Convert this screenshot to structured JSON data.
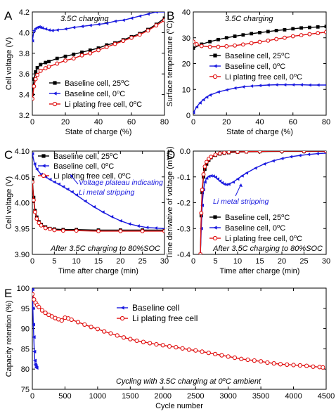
{
  "chart_data": [
    {
      "panel": "A",
      "type": "line",
      "xlabel": "State of charge (%)",
      "ylabel": "Cell voltage (V)",
      "xlim": [
        0,
        80
      ],
      "ylim": [
        3.2,
        4.2
      ],
      "xticks": [
        0,
        20,
        40,
        60,
        80
      ],
      "yticks": [
        3.2,
        3.4,
        3.6,
        3.8,
        4.0,
        4.2
      ],
      "ytick_labels": [
        "3.2",
        "3.4",
        "3.6",
        "3.8",
        "4.0",
        "4.2"
      ],
      "annotation": "3.5C charging",
      "legend_position": "bottom-right",
      "series": [
        {
          "name": "Baseline cell, 25°C",
          "color": "#000000",
          "marker": "square",
          "x": [
            0,
            1,
            2,
            3,
            5,
            8,
            10,
            15,
            20,
            25,
            30,
            35,
            40,
            45,
            50,
            55,
            60,
            65,
            70,
            75,
            80
          ],
          "y": [
            3.4,
            3.55,
            3.62,
            3.66,
            3.69,
            3.71,
            3.72,
            3.75,
            3.77,
            3.79,
            3.81,
            3.83,
            3.85,
            3.88,
            3.9,
            3.93,
            3.96,
            3.99,
            4.03,
            4.08,
            4.14
          ]
        },
        {
          "name": "Baseline cell, 0°C",
          "color": "#1a1adf",
          "marker": "triangle-left",
          "x": [
            0,
            1,
            2,
            3,
            4,
            5,
            6,
            8,
            10,
            12,
            15,
            20,
            25,
            30,
            35,
            40,
            45,
            50,
            55,
            60,
            65,
            70,
            75,
            80
          ],
          "y": [
            3.92,
            4.02,
            4.04,
            4.05,
            4.055,
            4.05,
            4.045,
            4.035,
            4.025,
            4.02,
            4.025,
            4.035,
            4.05,
            4.06,
            4.07,
            4.08,
            4.09,
            4.11,
            4.12,
            4.14,
            4.16,
            4.18,
            4.2,
            4.2
          ]
        },
        {
          "name": "Li plating free cell, 0°C",
          "color": "#e01010",
          "marker": "circle-open",
          "x": [
            0,
            1,
            2,
            3,
            5,
            8,
            10,
            15,
            20,
            25,
            30,
            35,
            40,
            45,
            50,
            55,
            60,
            65,
            70,
            75,
            80
          ],
          "y": [
            3.36,
            3.48,
            3.55,
            3.59,
            3.63,
            3.655,
            3.67,
            3.7,
            3.73,
            3.75,
            3.78,
            3.8,
            3.83,
            3.86,
            3.89,
            3.92,
            3.95,
            3.98,
            4.02,
            4.07,
            4.12
          ]
        }
      ]
    },
    {
      "panel": "B",
      "type": "line",
      "xlabel": "State of charge (%)",
      "ylabel": "Surface temperature (°C)",
      "xlim": [
        0,
        80
      ],
      "ylim": [
        0,
        40
      ],
      "xticks": [
        0,
        20,
        40,
        60,
        80
      ],
      "yticks": [
        0,
        10,
        20,
        30,
        40
      ],
      "annotation": "3.5C charging",
      "legend_position": "center-right",
      "series": [
        {
          "name": "Baseline cell, 25°C",
          "color": "#000000",
          "marker": "square",
          "x": [
            0,
            5,
            10,
            15,
            20,
            25,
            30,
            35,
            40,
            45,
            50,
            55,
            60,
            65,
            70,
            75,
            80
          ],
          "y": [
            26.0,
            27.5,
            28.5,
            29.3,
            30.0,
            30.6,
            31.1,
            31.6,
            32.0,
            32.4,
            32.8,
            33.1,
            33.5,
            33.8,
            34.0,
            34.2,
            34.4
          ]
        },
        {
          "name": "Baseline cell, 0°C",
          "color": "#1a1adf",
          "marker": "triangle-left",
          "x": [
            0,
            2,
            4,
            6,
            8,
            10,
            15,
            20,
            25,
            30,
            35,
            40,
            45,
            50,
            55,
            60,
            65,
            70,
            75,
            80
          ],
          "y": [
            1.0,
            3.2,
            4.8,
            6.0,
            7.0,
            7.8,
            9.0,
            9.8,
            10.5,
            11.0,
            11.3,
            11.5,
            11.7,
            11.8,
            11.8,
            11.8,
            11.8,
            11.7,
            11.7,
            11.7
          ]
        },
        {
          "name": "Li plating free cell, 0°C",
          "color": "#e01010",
          "marker": "circle-open",
          "x": [
            0,
            2,
            5,
            10,
            15,
            20,
            25,
            30,
            35,
            40,
            45,
            50,
            55,
            60,
            65,
            70,
            75,
            80
          ],
          "y": [
            28.5,
            27.5,
            26.8,
            26.5,
            26.5,
            26.7,
            27.0,
            27.4,
            27.9,
            28.4,
            28.9,
            29.5,
            30.0,
            30.6,
            31.0,
            31.4,
            31.8,
            32.2
          ]
        }
      ]
    },
    {
      "panel": "C",
      "type": "line",
      "xlabel": "Time after charge (min)",
      "ylabel": "Cell voltage (V)",
      "xlim": [
        0,
        30
      ],
      "ylim": [
        3.9,
        4.1
      ],
      "xticks": [
        0,
        5,
        10,
        15,
        20,
        25,
        30
      ],
      "yticks": [
        3.9,
        3.95,
        4.0,
        4.05,
        4.1
      ],
      "ytick_labels": [
        "3.90",
        "3.95",
        "4.00",
        "4.05",
        "4.10"
      ],
      "annotation": "After 3.5C charging to 80%SOC",
      "annotation2": "Voltage plateau indicating",
      "annotation3": "Li metal stripping",
      "legend_position": "top-right",
      "series": [
        {
          "name": "Baseline cell, 25°C",
          "color": "#000000",
          "marker": "square",
          "x": [
            0,
            0.3,
            0.6,
            1,
            1.5,
            2,
            3,
            4,
            5,
            7,
            10,
            15,
            20,
            25,
            30
          ],
          "y": [
            4.045,
            4.01,
            3.985,
            3.972,
            3.963,
            3.958,
            3.953,
            3.95,
            3.949,
            3.948,
            3.948,
            3.947,
            3.947,
            3.947,
            3.947
          ]
        },
        {
          "name": "Baseline cell, 0°C",
          "color": "#1a1adf",
          "marker": "triangle-left",
          "x": [
            0,
            0.5,
            1,
            2,
            3,
            4,
            5,
            6,
            7,
            8,
            9,
            10,
            12,
            14,
            16,
            18,
            20,
            22,
            24,
            26,
            28,
            30
          ],
          "y": [
            4.095,
            4.075,
            4.065,
            4.055,
            4.05,
            4.045,
            4.04,
            4.036,
            4.031,
            4.026,
            4.021,
            4.015,
            4.003,
            3.992,
            3.982,
            3.973,
            3.965,
            3.959,
            3.955,
            3.952,
            3.951,
            3.95
          ]
        },
        {
          "name": "Li plating free cell, 0°C",
          "color": "#e01010",
          "marker": "circle-open",
          "x": [
            0,
            0.3,
            0.6,
            1,
            1.5,
            2,
            3,
            4,
            5,
            7,
            10,
            15,
            20,
            25,
            30
          ],
          "y": [
            4.04,
            4.005,
            3.982,
            3.969,
            3.961,
            3.956,
            3.951,
            3.949,
            3.947,
            3.946,
            3.946,
            3.945,
            3.945,
            3.945,
            3.945
          ]
        }
      ]
    },
    {
      "panel": "D",
      "type": "line",
      "xlabel": "Time after charge (min)",
      "ylabel": "Time derivative of voltage (mV/s)",
      "xlim": [
        0,
        30
      ],
      "ylim": [
        -0.4,
        0.0
      ],
      "xticks": [
        0,
        5,
        10,
        15,
        20,
        25,
        30
      ],
      "yticks": [
        -0.4,
        -0.3,
        -0.2,
        -0.1,
        0.0
      ],
      "ytick_labels": [
        "-0.4",
        "-0.3",
        "-0.2",
        "-0.1",
        "0.0"
      ],
      "annotation": "After 3.5C charging to 80%SOC",
      "annotation2": "Li metal stripping",
      "legend_position": "bottom-right",
      "series": [
        {
          "name": "Baseline cell, 25°C",
          "color": "#000000",
          "marker": "square",
          "x": [
            1.6,
            1.8,
            2,
            2.3,
            2.6,
            3,
            3.5,
            4,
            5,
            6,
            7,
            8,
            10,
            12,
            15,
            20,
            25,
            30
          ],
          "y": [
            -0.4,
            -0.25,
            -0.16,
            -0.1,
            -0.07,
            -0.05,
            -0.035,
            -0.025,
            -0.016,
            -0.011,
            -0.008,
            -0.006,
            -0.004,
            -0.003,
            -0.002,
            -0.001,
            -0.001,
            -0.001
          ]
        },
        {
          "name": "Baseline cell, 0°C",
          "color": "#1a1adf",
          "marker": "triangle-left",
          "x": [
            1.6,
            1.8,
            2,
            2.3,
            2.6,
            3,
            3.5,
            4,
            4.5,
            5,
            5.5,
            6,
            6.5,
            7,
            7.5,
            8,
            9,
            10,
            11,
            12,
            14,
            16,
            18,
            20,
            22,
            24,
            26,
            28,
            30
          ],
          "y": [
            -0.4,
            -0.3,
            -0.21,
            -0.15,
            -0.12,
            -0.105,
            -0.098,
            -0.096,
            -0.097,
            -0.101,
            -0.108,
            -0.116,
            -0.123,
            -0.128,
            -0.13,
            -0.128,
            -0.12,
            -0.108,
            -0.096,
            -0.085,
            -0.066,
            -0.05,
            -0.038,
            -0.029,
            -0.022,
            -0.017,
            -0.013,
            -0.01,
            -0.008
          ]
        },
        {
          "name": "Li plating free cell, 0°C",
          "color": "#e01010",
          "marker": "circle-open",
          "x": [
            1.6,
            1.8,
            2,
            2.3,
            2.6,
            3,
            3.5,
            4,
            5,
            6,
            7,
            8,
            10,
            12,
            15,
            20,
            25,
            30
          ],
          "y": [
            -0.4,
            -0.24,
            -0.15,
            -0.09,
            -0.06,
            -0.042,
            -0.03,
            -0.022,
            -0.014,
            -0.009,
            -0.006,
            -0.004,
            -0.003,
            -0.002,
            -0.001,
            0.0,
            0.0,
            0.0
          ]
        }
      ]
    },
    {
      "panel": "E",
      "type": "line",
      "xlabel": "Cycle number",
      "ylabel": "Capacity retention (%)",
      "xlim": [
        0,
        4500
      ],
      "ylim": [
        75,
        100
      ],
      "xticks": [
        0,
        500,
        1000,
        1500,
        2000,
        2500,
        3000,
        3500,
        4000,
        4500
      ],
      "yticks": [
        75,
        80,
        85,
        90,
        95,
        100
      ],
      "annotation": "Cycling with 3.5C charging at 0°C ambient",
      "legend_position": "top-center",
      "series": [
        {
          "name": "Baseline cell",
          "color": "#1a1adf",
          "marker": "triangle-left",
          "x": [
            2,
            8,
            15,
            22,
            30,
            38,
            45,
            52,
            58,
            65
          ],
          "y": [
            99.7,
            95.0,
            91.0,
            87.9,
            84.3,
            82.1,
            81.2,
            80.8,
            80.4,
            80.3
          ]
        },
        {
          "name": "Li plating free cell",
          "color": "#e01010",
          "marker": "circle-open",
          "x": [
            0,
            25,
            50,
            75,
            100,
            150,
            200,
            250,
            300,
            350,
            400,
            450,
            500,
            550,
            600,
            700,
            800,
            900,
            1000,
            1100,
            1200,
            1300,
            1400,
            1500,
            1600,
            1700,
            1800,
            1900,
            2000,
            2100,
            2200,
            2300,
            2400,
            2500,
            2600,
            2700,
            2800,
            2900,
            3000,
            3100,
            3200,
            3300,
            3400,
            3500,
            3600,
            3700,
            3800,
            3900,
            4000,
            4100,
            4200,
            4300,
            4400,
            4450
          ],
          "y": [
            98.5,
            97.2,
            96.4,
            95.8,
            95.3,
            94.5,
            93.9,
            93.4,
            93.0,
            92.6,
            92.3,
            92.0,
            92.7,
            92.5,
            92.2,
            91.6,
            91.0,
            90.4,
            89.9,
            89.3,
            88.8,
            88.3,
            87.8,
            87.4,
            87.0,
            86.7,
            86.4,
            86.1,
            85.9,
            85.6,
            85.4,
            85.1,
            84.8,
            84.6,
            84.3,
            84.0,
            83.7,
            83.4,
            83.1,
            82.8,
            82.5,
            82.3,
            82.1,
            81.9,
            81.6,
            81.4,
            81.2,
            81.1,
            81.0,
            80.9,
            80.8,
            80.6,
            80.5,
            80.4
          ]
        }
      ]
    }
  ]
}
